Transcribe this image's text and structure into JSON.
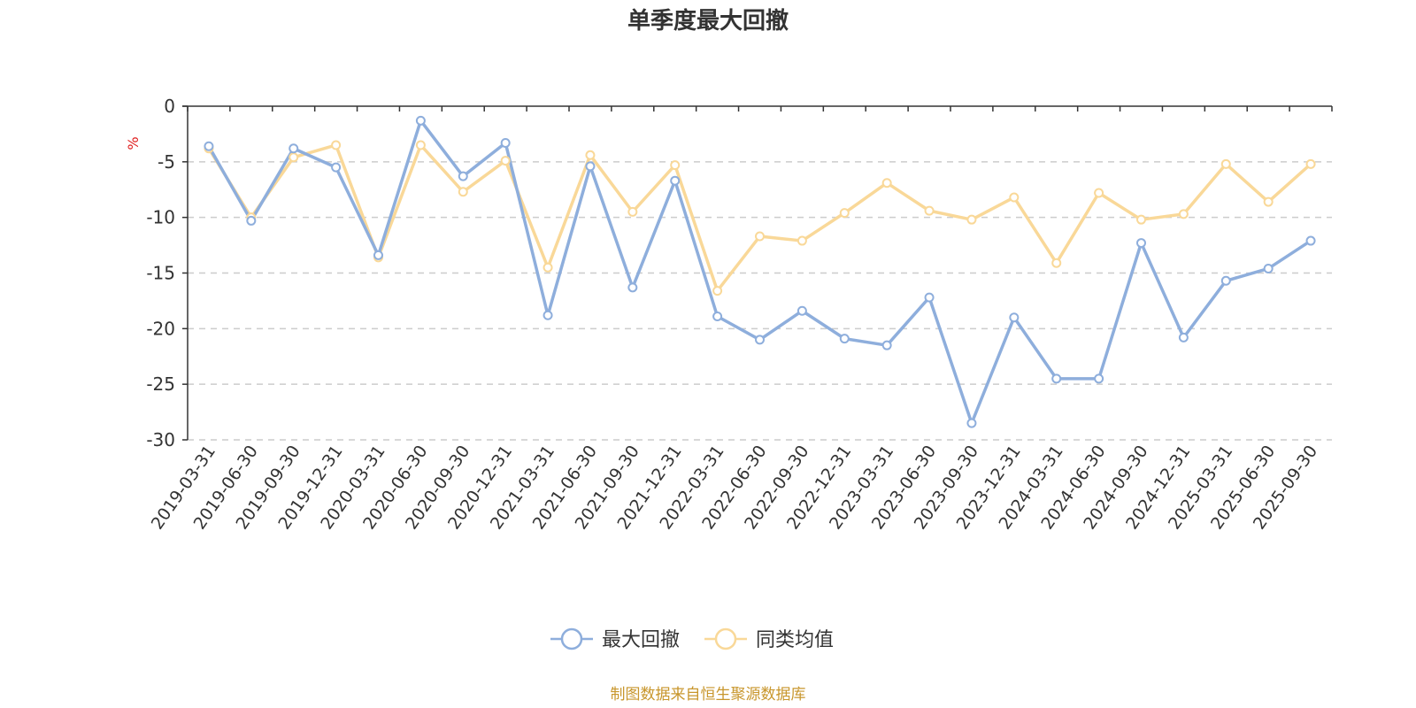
{
  "chart_data": {
    "type": "line",
    "title": "单季度最大回撤",
    "unit_label": "%",
    "ylim": [
      -30,
      0
    ],
    "y_ticks": [
      0,
      -5,
      -10,
      -15,
      -20,
      -25,
      -30
    ],
    "grid": "horizontal-dashed",
    "categories": [
      "2019-03-31",
      "2019-06-30",
      "2019-09-30",
      "2019-12-31",
      "2020-03-31",
      "2020-06-30",
      "2020-09-30",
      "2020-12-31",
      "2021-03-31",
      "2021-06-30",
      "2021-09-30",
      "2021-12-31",
      "2022-03-31",
      "2022-06-30",
      "2022-09-30",
      "2022-12-31",
      "2023-03-31",
      "2023-06-30",
      "2023-09-30",
      "2023-12-31",
      "2024-03-31",
      "2024-06-30",
      "2024-09-30",
      "2024-12-31",
      "2025-03-31",
      "2025-06-30",
      "2025-09-30"
    ],
    "series": [
      {
        "name": "最大回撤",
        "color": "#8eaedc",
        "values": [
          -3.6,
          -10.3,
          -3.8,
          -5.5,
          -13.4,
          -1.3,
          -6.3,
          -3.3,
          -18.8,
          -5.4,
          -16.3,
          -6.7,
          -18.9,
          -21.0,
          -18.4,
          -20.9,
          -21.5,
          -17.2,
          -28.5,
          -19.0,
          -24.5,
          -24.5,
          -12.3,
          -20.8,
          -15.7,
          -14.6,
          -12.1
        ]
      },
      {
        "name": "同类均值",
        "color": "#f9d898",
        "values": [
          -3.8,
          -10.0,
          -4.6,
          -3.5,
          -13.6,
          -3.5,
          -7.7,
          -4.9,
          -14.5,
          -4.4,
          -9.5,
          -5.3,
          -16.6,
          -11.7,
          -12.1,
          -9.6,
          -6.9,
          -9.4,
          -10.2,
          -8.2,
          -14.1,
          -7.8,
          -10.2,
          -9.7,
          -5.2,
          -8.6,
          -5.2
        ]
      }
    ],
    "legend_position": "bottom-center"
  },
  "footer": {
    "source": "制图数据来自恒生聚源数据库"
  }
}
